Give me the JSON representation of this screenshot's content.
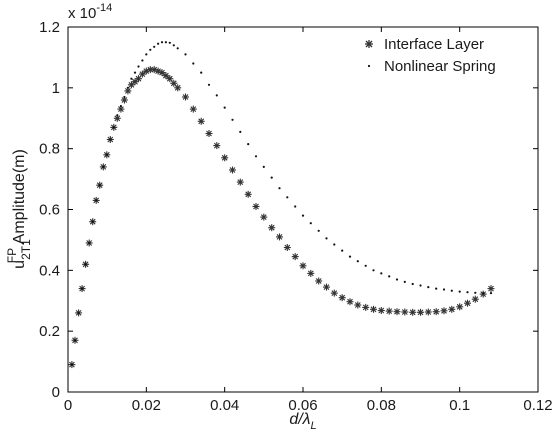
{
  "chart_data": {
    "type": "scatter",
    "xlabel": {
      "base": "d/",
      "greek": "λ",
      "sub": "L"
    },
    "ylabel": {
      "base": "u",
      "sub": "2T1",
      "sup": "FP",
      "rest": " Amplitude(m)"
    },
    "y_multiplier": {
      "base": "x 10",
      "exp": "-14"
    },
    "xlim": [
      0,
      0.12
    ],
    "ylim": [
      0,
      1.2
    ],
    "xticks": [
      0,
      0.02,
      0.04,
      0.06,
      0.08,
      0.1,
      0.12
    ],
    "xtick_labels": [
      "0",
      "0.02",
      "0.04",
      "0.06",
      "0.08",
      "0.1",
      "0.12"
    ],
    "yticks": [
      0,
      0.2,
      0.4,
      0.6,
      0.8,
      1.0,
      1.2
    ],
    "ytick_labels": [
      "0",
      "0.2",
      "0.4",
      "0.6",
      "0.8",
      "1",
      "1.2"
    ],
    "grid": false,
    "legend_position": "top-right",
    "series": [
      {
        "name": "Interface Layer",
        "marker": "asterisk",
        "color": "#333333",
        "points": [
          [
            0.001,
            0.09
          ],
          [
            0.0018,
            0.17
          ],
          [
            0.0027,
            0.26
          ],
          [
            0.0036,
            0.34
          ],
          [
            0.0045,
            0.42
          ],
          [
            0.0054,
            0.49
          ],
          [
            0.0063,
            0.56
          ],
          [
            0.0072,
            0.63
          ],
          [
            0.0081,
            0.68
          ],
          [
            0.009,
            0.74
          ],
          [
            0.0099,
            0.78
          ],
          [
            0.0108,
            0.83
          ],
          [
            0.0117,
            0.87
          ],
          [
            0.0126,
            0.9
          ],
          [
            0.0135,
            0.93
          ],
          [
            0.0144,
            0.96
          ],
          [
            0.0153,
            0.99
          ],
          [
            0.0162,
            1.01
          ],
          [
            0.0171,
            1.02
          ],
          [
            0.018,
            1.03
          ],
          [
            0.019,
            1.045
          ],
          [
            0.02,
            1.055
          ],
          [
            0.021,
            1.06
          ],
          [
            0.022,
            1.06
          ],
          [
            0.023,
            1.055
          ],
          [
            0.024,
            1.05
          ],
          [
            0.025,
            1.04
          ],
          [
            0.026,
            1.03
          ],
          [
            0.027,
            1.015
          ],
          [
            0.028,
            1.0
          ],
          [
            0.03,
            0.97
          ],
          [
            0.032,
            0.93
          ],
          [
            0.034,
            0.89
          ],
          [
            0.036,
            0.85
          ],
          [
            0.038,
            0.81
          ],
          [
            0.04,
            0.77
          ],
          [
            0.042,
            0.73
          ],
          [
            0.044,
            0.69
          ],
          [
            0.046,
            0.65
          ],
          [
            0.048,
            0.61
          ],
          [
            0.05,
            0.575
          ],
          [
            0.052,
            0.54
          ],
          [
            0.054,
            0.51
          ],
          [
            0.056,
            0.475
          ],
          [
            0.058,
            0.445
          ],
          [
            0.06,
            0.415
          ],
          [
            0.062,
            0.39
          ],
          [
            0.064,
            0.365
          ],
          [
            0.066,
            0.345
          ],
          [
            0.068,
            0.325
          ],
          [
            0.07,
            0.31
          ],
          [
            0.072,
            0.297
          ],
          [
            0.074,
            0.286
          ],
          [
            0.076,
            0.278
          ],
          [
            0.078,
            0.272
          ],
          [
            0.08,
            0.268
          ],
          [
            0.082,
            0.266
          ],
          [
            0.084,
            0.264
          ],
          [
            0.086,
            0.263
          ],
          [
            0.088,
            0.262
          ],
          [
            0.09,
            0.262
          ],
          [
            0.092,
            0.263
          ],
          [
            0.094,
            0.264
          ],
          [
            0.096,
            0.267
          ],
          [
            0.098,
            0.272
          ],
          [
            0.1,
            0.28
          ],
          [
            0.102,
            0.292
          ],
          [
            0.104,
            0.305
          ],
          [
            0.106,
            0.322
          ],
          [
            0.108,
            0.34
          ]
        ]
      },
      {
        "name": "Nonlinear Spring",
        "marker": "dot",
        "color": "#111111",
        "points": [
          [
            0.001,
            0.09
          ],
          [
            0.0018,
            0.17
          ],
          [
            0.0027,
            0.26
          ],
          [
            0.0036,
            0.34
          ],
          [
            0.0045,
            0.42
          ],
          [
            0.0054,
            0.49
          ],
          [
            0.0063,
            0.56
          ],
          [
            0.0072,
            0.63
          ],
          [
            0.0081,
            0.68
          ],
          [
            0.009,
            0.74
          ],
          [
            0.0099,
            0.78
          ],
          [
            0.0108,
            0.83
          ],
          [
            0.0117,
            0.87
          ],
          [
            0.0126,
            0.91
          ],
          [
            0.0135,
            0.94
          ],
          [
            0.0144,
            0.97
          ],
          [
            0.0153,
            1.0
          ],
          [
            0.0162,
            1.03
          ],
          [
            0.0171,
            1.05
          ],
          [
            0.018,
            1.07
          ],
          [
            0.019,
            1.09
          ],
          [
            0.02,
            1.11
          ],
          [
            0.021,
            1.125
          ],
          [
            0.022,
            1.135
          ],
          [
            0.023,
            1.145
          ],
          [
            0.024,
            1.15
          ],
          [
            0.025,
            1.15
          ],
          [
            0.026,
            1.148
          ],
          [
            0.027,
            1.14
          ],
          [
            0.028,
            1.13
          ],
          [
            0.03,
            1.11
          ],
          [
            0.032,
            1.08
          ],
          [
            0.034,
            1.05
          ],
          [
            0.036,
            1.01
          ],
          [
            0.038,
            0.975
          ],
          [
            0.04,
            0.935
          ],
          [
            0.042,
            0.895
          ],
          [
            0.044,
            0.855
          ],
          [
            0.046,
            0.815
          ],
          [
            0.048,
            0.775
          ],
          [
            0.05,
            0.74
          ],
          [
            0.052,
            0.705
          ],
          [
            0.054,
            0.67
          ],
          [
            0.056,
            0.64
          ],
          [
            0.058,
            0.61
          ],
          [
            0.06,
            0.58
          ],
          [
            0.062,
            0.555
          ],
          [
            0.064,
            0.53
          ],
          [
            0.066,
            0.505
          ],
          [
            0.068,
            0.485
          ],
          [
            0.07,
            0.465
          ],
          [
            0.072,
            0.445
          ],
          [
            0.074,
            0.43
          ],
          [
            0.076,
            0.415
          ],
          [
            0.078,
            0.4
          ],
          [
            0.08,
            0.39
          ],
          [
            0.082,
            0.38
          ],
          [
            0.084,
            0.37
          ],
          [
            0.086,
            0.362
          ],
          [
            0.088,
            0.355
          ],
          [
            0.09,
            0.35
          ],
          [
            0.092,
            0.345
          ],
          [
            0.094,
            0.34
          ],
          [
            0.096,
            0.337
          ],
          [
            0.098,
            0.333
          ],
          [
            0.1,
            0.33
          ],
          [
            0.102,
            0.328
          ],
          [
            0.104,
            0.326
          ],
          [
            0.106,
            0.325
          ],
          [
            0.108,
            0.325
          ]
        ]
      }
    ]
  }
}
